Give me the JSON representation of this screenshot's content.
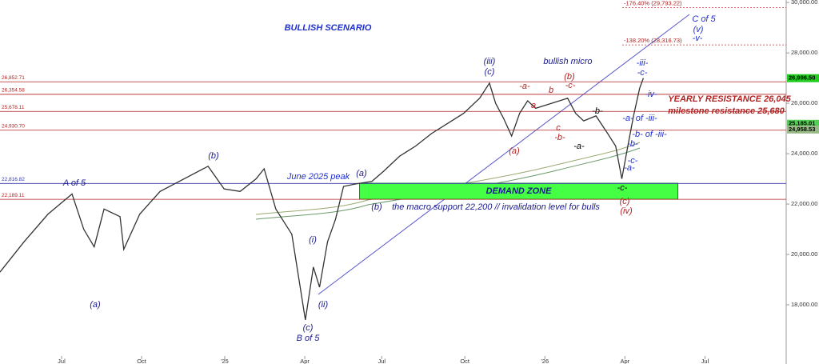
{
  "chart_data": {
    "type": "line",
    "x": [
      0,
      3.9,
      7.8,
      11.7,
      13.6,
      15.3,
      16.9,
      19.5,
      20.1,
      22.7,
      26,
      29.9,
      33.8,
      36.4,
      39,
      41.6,
      42.9,
      44.8,
      47.4,
      49.6,
      50.9,
      51.9,
      53.2,
      54.5,
      55.8,
      57.8,
      60.4,
      62.3,
      64.9,
      67.5,
      70.1,
      72.7,
      75.3,
      77.9,
      79.5,
      80.5,
      81.8,
      83.1,
      84.4,
      85.7,
      87,
      89.6,
      92.2,
      93.5,
      94.8,
      96.8,
      98.7,
      100,
      101,
      101.9,
      102.9,
      103.9,
      104.5
    ],
    "series": [
      {
        "color": "#333333",
        "values": [
          19300,
          20500,
          21600,
          22400,
          21000,
          20300,
          21800,
          21500,
          20200,
          21600,
          22500,
          23000,
          23500,
          22600,
          22500,
          23000,
          23400,
          21800,
          20800,
          17400,
          19500,
          18700,
          20500,
          21400,
          22700,
          22800,
          22900,
          23300,
          23900,
          24300,
          24800,
          25200,
          25600,
          26200,
          26800,
          26000,
          25400,
          24700,
          25600,
          26100,
          25800,
          26000,
          26200,
          25600,
          25300,
          25500,
          24800,
          24300,
          23000,
          24200,
          25500,
          26600,
          27000
        ]
      }
    ],
    "xlim": [
      0,
      127.7
    ],
    "xticks": [
      {
        "value": 10,
        "label": "Jul"
      },
      {
        "value": 23,
        "label": "Oct"
      },
      {
        "value": 36.5,
        "label": "'25"
      },
      {
        "value": 49.5,
        "label": "Apr"
      },
      {
        "value": 62,
        "label": "Jul"
      },
      {
        "value": 75.5,
        "label": "Oct"
      },
      {
        "value": 88.5,
        "label": "'26"
      },
      {
        "value": 101.5,
        "label": "Apr"
      },
      {
        "value": 114.5,
        "label": "Jul"
      }
    ],
    "ylim": [
      15650,
      30100
    ],
    "yticks": [
      {
        "value": 18000,
        "label": "18,000.00"
      },
      {
        "value": 20000,
        "label": "20,000.00"
      },
      {
        "value": 22000,
        "label": "22,000.00"
      },
      {
        "value": 24000,
        "label": "24,000.00"
      },
      {
        "value": 26000,
        "label": "26,000.00"
      },
      {
        "value": 28000,
        "label": "28,000.00"
      },
      {
        "value": 30000,
        "label": "30,000.00"
      }
    ],
    "grid": false,
    "levels": [
      {
        "value": 26852.71,
        "label": "26,852.71",
        "color": "#b22222"
      },
      {
        "value": 26354.58,
        "label": "26,354.58",
        "color": "#b22222"
      },
      {
        "value": 25678.11,
        "label": "25,678.11",
        "color": "#b22222"
      },
      {
        "value": 24930.7,
        "label": "24,930.70",
        "color": "#b22222"
      },
      {
        "value": 22816.82,
        "label": "22,816.82",
        "color": "#3333aa"
      },
      {
        "value": 22189.11,
        "label": "22,189.11",
        "color": "#b22222"
      }
    ],
    "fib_levels": [
      {
        "value": 29793.22,
        "label": "-176.40% (29,793.22)"
      },
      {
        "value": 28316.73,
        "label": "-138.20% (28,316.73)"
      }
    ],
    "price_tags": [
      {
        "value": 26996.5,
        "label": "26,996.50",
        "color": "#22cc22"
      },
      {
        "value": 25185.01,
        "label": "25,185.01",
        "color": "#55cc55"
      },
      {
        "value": 24958.53,
        "label": "24,958.53",
        "color": "#99bb88"
      }
    ],
    "zone": {
      "label": "DEMAND ZONE",
      "range": [
        22190,
        22825
      ],
      "x": [
        58.4,
        110.1
      ],
      "color": "#44ff44"
    },
    "annotations": [
      {
        "text": "BULLISH SCENARIO",
        "color": "#1f2fd0"
      },
      {
        "text": "bullish micro",
        "color": "#1a1a8c"
      },
      {
        "text": "C of 5",
        "color": "#1f2fd0"
      },
      {
        "text": "(v)",
        "color": "#1f2fd0"
      },
      {
        "text": "-v-",
        "color": "#1f2fd0"
      },
      {
        "text": "YEARLY RESISTANCE 26,045",
        "color": "#b22222"
      },
      {
        "text": "milestone resistance 25,680",
        "color": "#b22222"
      },
      {
        "text": "June 2025 peak",
        "color": "#1f2fd0"
      },
      {
        "text": "the macro support 22,200 // invalidation level for bulls",
        "color": "#1a1a8c"
      },
      {
        "text": "A of 5",
        "color": "#1a1a8c"
      },
      {
        "text": "(a)",
        "color": "#1a1a8c"
      },
      {
        "text": "(b)",
        "color": "#1a1a8c"
      },
      {
        "text": "(i)",
        "color": "#1a1a8c"
      },
      {
        "text": "(ii)",
        "color": "#1a1a8c"
      },
      {
        "text": "(c)",
        "color": "#1a1a8c"
      },
      {
        "text": "B of 5",
        "color": "#1a1a8c"
      },
      {
        "text": "(a)",
        "color": "#1a1a8c"
      },
      {
        "text": "(b)",
        "color": "#1a1a8c"
      },
      {
        "text": "(iii)",
        "color": "#1a1a8c"
      },
      {
        "text": "(c)",
        "color": "#1a1a8c"
      },
      {
        "text": "-a-",
        "color": "#b22222"
      },
      {
        "text": "b",
        "color": "#b22222"
      },
      {
        "text": "a",
        "color": "#b22222"
      },
      {
        "text": "(a)",
        "color": "#b22222"
      },
      {
        "text": "(b)",
        "color": "#b22222"
      },
      {
        "text": "-c-",
        "color": "#b22222"
      },
      {
        "text": "c",
        "color": "#b22222"
      },
      {
        "text": "-b-",
        "color": "#b22222"
      },
      {
        "text": "-a-",
        "color": "#000000"
      },
      {
        "text": "-b-",
        "color": "#000000"
      },
      {
        "text": "-iii-",
        "color": "#1f2fd0"
      },
      {
        "text": "-c-",
        "color": "#1f2fd0"
      },
      {
        "text": "-iv-",
        "color": "#1f2fd0"
      },
      {
        "text": "-a- of -iii-",
        "color": "#1f2fd0"
      },
      {
        "text": "-b- of -iii-",
        "color": "#1f2fd0"
      },
      {
        "text": "-b-",
        "color": "#1f2fd0"
      },
      {
        "text": "-c-",
        "color": "#1f2fd0"
      },
      {
        "text": "-a-",
        "color": "#1f2fd0"
      },
      {
        "text": "-c-",
        "color": "#000000"
      },
      {
        "text": "(c)",
        "color": "#b22222"
      },
      {
        "text": "(iv)",
        "color": "#b22222"
      }
    ]
  }
}
